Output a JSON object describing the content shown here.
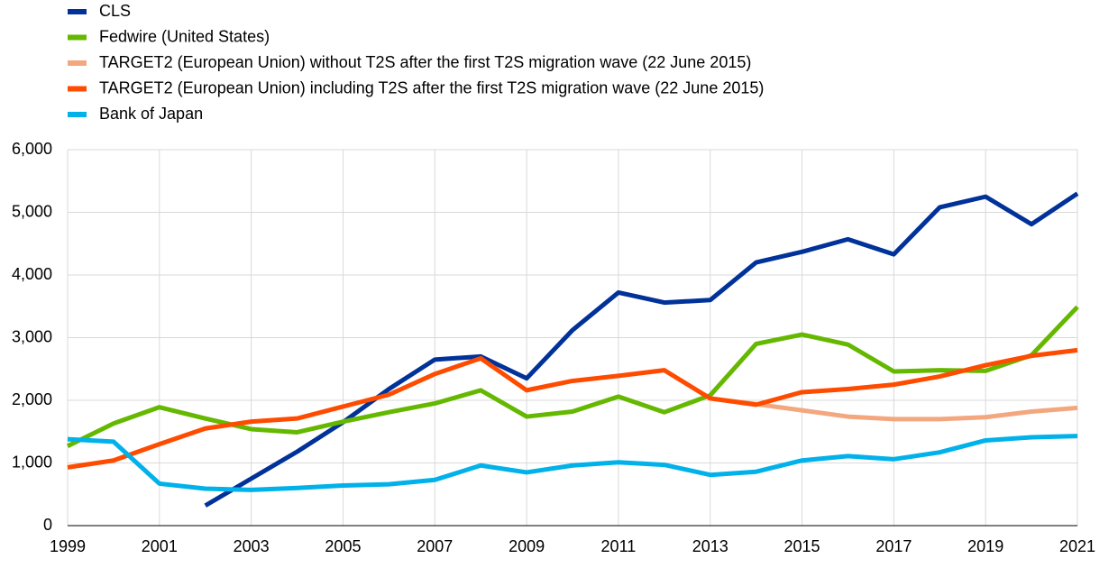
{
  "chart_data": {
    "type": "line",
    "x": [
      1999,
      2000,
      2001,
      2002,
      2003,
      2004,
      2005,
      2006,
      2007,
      2008,
      2009,
      2010,
      2011,
      2012,
      2013,
      2014,
      2015,
      2016,
      2017,
      2018,
      2019,
      2020,
      2021
    ],
    "series": [
      {
        "name": "CLS",
        "color": "#003299",
        "values": [
          null,
          null,
          null,
          320,
          750,
          1180,
          1650,
          2180,
          2650,
          2700,
          2350,
          3120,
          3720,
          3560,
          3600,
          4200,
          4370,
          4570,
          4330,
          5080,
          5250,
          4810,
          5300
        ]
      },
      {
        "name": "Fedwire (United States)",
        "color": "#65b800",
        "values": [
          1270,
          1630,
          1890,
          1710,
          1540,
          1490,
          1660,
          1810,
          1950,
          2160,
          1740,
          1820,
          2060,
          1810,
          2080,
          2900,
          3050,
          2890,
          2460,
          2480,
          2470,
          2720,
          3490
        ]
      },
      {
        "name": "TARGET2 (European Union) without T2S after the first T2S migration wave (22 June 2015)",
        "color": "#f3a77f",
        "values": [
          null,
          null,
          null,
          null,
          null,
          null,
          null,
          null,
          null,
          null,
          null,
          null,
          null,
          null,
          2030,
          1940,
          1840,
          1740,
          1700,
          1700,
          1730,
          1820,
          1880
        ]
      },
      {
        "name": "TARGET2 (European Union) including T2S after the first T2S migration wave (22 June 2015)",
        "color": "#ff4b00",
        "values": [
          930,
          1040,
          1300,
          1550,
          1660,
          1710,
          1900,
          2090,
          2420,
          2670,
          2160,
          2310,
          2390,
          2480,
          2030,
          1930,
          2130,
          2180,
          2250,
          2380,
          2560,
          2710,
          2800
        ]
      },
      {
        "name": "Bank of Japan",
        "color": "#00b1ea",
        "values": [
          1380,
          1340,
          670,
          590,
          570,
          600,
          640,
          660,
          730,
          960,
          850,
          960,
          1010,
          970,
          810,
          860,
          1040,
          1110,
          1060,
          1170,
          1360,
          1410,
          1430
        ]
      }
    ],
    "xlim": [
      1999,
      2021
    ],
    "xticks": [
      1999,
      2001,
      2003,
      2005,
      2007,
      2009,
      2011,
      2013,
      2015,
      2017,
      2019,
      2021
    ],
    "ylim": [
      0,
      6000
    ],
    "yticks": [
      0,
      {
        "value": 1000,
        "label": "1,000"
      },
      {
        "value": 2000,
        "label": "2,000"
      },
      {
        "value": 3000,
        "label": "3,000"
      },
      {
        "value": 4000,
        "label": "4,000"
      },
      {
        "value": 5000,
        "label": "5,000"
      },
      {
        "value": 6000,
        "label": "6,000"
      }
    ],
    "grid": true
  }
}
